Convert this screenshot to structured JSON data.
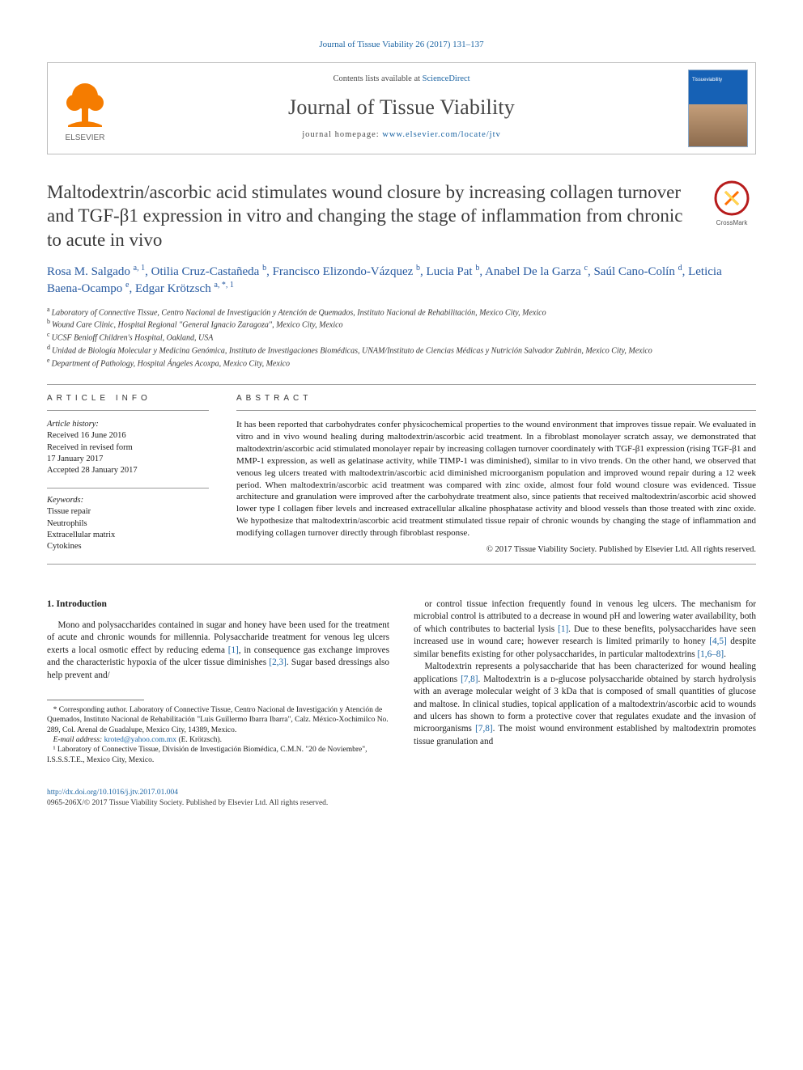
{
  "running_head": {
    "journal": "Journal of Tissue Viability",
    "vol": "26",
    "year": "(2017)",
    "pages": "131–137"
  },
  "banner": {
    "contents_prefix": "Contents lists available at ",
    "contents_link": "ScienceDirect",
    "journal_name": "Journal of Tissue Viability",
    "homepage_prefix": "journal homepage: ",
    "homepage_url": "www.elsevier.com/locate/jtv",
    "publisher_word": "ELSEVIER",
    "cover_label": "Tissueviability"
  },
  "title": "Maltodextrin/ascorbic acid stimulates wound closure by increasing collagen turnover and TGF-β1 expression in vitro and changing the stage of inflammation from chronic to acute in vivo",
  "crossmark_label": "CrossMark",
  "authors": [
    {
      "name": "Rosa M. Salgado",
      "sup": "a, 1"
    },
    {
      "name": "Otilia Cruz-Castañeda",
      "sup": "b"
    },
    {
      "name": "Francisco Elizondo-Vázquez",
      "sup": "b"
    },
    {
      "name": "Lucia Pat",
      "sup": "b"
    },
    {
      "name": "Anabel De la Garza",
      "sup": "c"
    },
    {
      "name": "Saúl Cano-Colín",
      "sup": "d"
    },
    {
      "name": "Leticia Baena-Ocampo",
      "sup": "e"
    },
    {
      "name": "Edgar Krötzsch",
      "sup": "a, *, 1"
    }
  ],
  "affiliations": [
    {
      "key": "a",
      "text": "Laboratory of Connective Tissue, Centro Nacional de Investigación y Atención de Quemados, Instituto Nacional de Rehabilitación, Mexico City, Mexico"
    },
    {
      "key": "b",
      "text": "Wound Care Clinic, Hospital Regional \"General Ignacio Zaragoza\", Mexico City, Mexico"
    },
    {
      "key": "c",
      "text": "UCSF Benioff Children's Hospital, Oakland, USA"
    },
    {
      "key": "d",
      "text": "Unidad de Biología Molecular y Medicina Genómica, Instituto de Investigaciones Biomédicas, UNAM/Instituto de Ciencias Médicas y Nutrición Salvador Zubirán, Mexico City, Mexico"
    },
    {
      "key": "e",
      "text": "Department of Pathology, Hospital Ángeles Acoxpa, Mexico City, Mexico"
    }
  ],
  "article_info": {
    "heading": "ARTICLE INFO",
    "history_label": "Article history:",
    "history": [
      "Received 16 June 2016",
      "Received in revised form",
      "17 January 2017",
      "Accepted 28 January 2017"
    ],
    "keywords_label": "Keywords:",
    "keywords": [
      "Tissue repair",
      "Neutrophils",
      "Extracellular matrix",
      "Cytokines"
    ]
  },
  "abstract": {
    "heading": "ABSTRACT",
    "text": "It has been reported that carbohydrates confer physicochemical properties to the wound environment that improves tissue repair. We evaluated in vitro and in vivo wound healing during maltodextrin/ascorbic acid treatment. In a fibroblast monolayer scratch assay, we demonstrated that maltodextrin/ascorbic acid stimulated monolayer repair by increasing collagen turnover coordinately with TGF-β1 expression (rising TGF-β1 and MMP-1 expression, as well as gelatinase activity, while TIMP-1 was diminished), similar to in vivo trends. On the other hand, we observed that venous leg ulcers treated with maltodextrin/ascorbic acid diminished microorganism population and improved wound repair during a 12 week period. When maltodextrin/ascorbic acid treatment was compared with zinc oxide, almost four fold wound closure was evidenced. Tissue architecture and granulation were improved after the carbohydrate treatment also, since patients that received maltodextrin/ascorbic acid showed lower type I collagen fiber levels and increased extracellular alkaline phosphatase activity and blood vessels than those treated with zinc oxide. We hypothesize that maltodextrin/ascorbic acid treatment stimulated tissue repair of chronic wounds by changing the stage of inflammation and modifying collagen turnover directly through fibroblast response.",
    "copyright": "© 2017 Tissue Viability Society. Published by Elsevier Ltd. All rights reserved."
  },
  "body": {
    "section_num": "1.",
    "section_title": "Introduction",
    "col1_p1": "Mono and polysaccharides contained in sugar and honey have been used for the treatment of acute and chronic wounds for millennia. Polysaccharide treatment for venous leg ulcers exerts a local osmotic effect by reducing edema [1], in consequence gas exchange improves and the characteristic hypoxia of the ulcer tissue diminishes [2,3]. Sugar based dressings also help prevent and/",
    "col2_p1": "or control tissue infection frequently found in venous leg ulcers. The mechanism for microbial control is attributed to a decrease in wound pH and lowering water availability, both of which contributes to bacterial lysis [1]. Due to these benefits, polysaccharides have seen increased use in wound care; however research is limited primarily to honey [4,5] despite similar benefits existing for other polysaccharides, in particular maltodextrins [1,6–8].",
    "col2_p2": "Maltodextrin represents a polysaccharide that has been characterized for wound healing applications [7,8]. Maltodextrin is a ᴅ-glucose polysaccharide obtained by starch hydrolysis with an average molecular weight of 3 kDa that is composed of small quantities of glucose and maltose. In clinical studies, topical application of a maltodextrin/ascorbic acid to wounds and ulcers has shown to form a protective cover that regulates exudate and the invasion of microorganisms [7,8]. The moist wound environment established by maltodextrin promotes tissue granulation and"
  },
  "footnote": {
    "corr": "* Corresponding author. Laboratory of Connective Tissue, Centro Nacional de Investigación y Atención de Quemados, Instituto Nacional de Rehabilitación \"Luis Guillermo Ibarra Ibarra\", Calz. México-Xochimilco No. 289, Col. Arenal de Guadalupe, Mexico City, 14389, Mexico.",
    "email_label": "E-mail address:",
    "email": "kroted@yahoo.com.mx",
    "email_who": "(E. Krötzsch).",
    "note1": "¹ Laboratory of Connective Tissue, División de Investigación Biomédica, C.M.N. \"20 de Noviembre\", I.S.S.S.T.E., Mexico City, Mexico."
  },
  "footer": {
    "doi": "http://dx.doi.org/10.1016/j.jtv.2017.01.004",
    "issn_copy": "0965-206X/© 2017 Tissue Viability Society. Published by Elsevier Ltd. All rights reserved."
  },
  "colors": {
    "link": "#1b64a3",
    "author": "#2659a0",
    "elsevier_orange": "#f57c00",
    "cover_blue": "#1661b5"
  }
}
